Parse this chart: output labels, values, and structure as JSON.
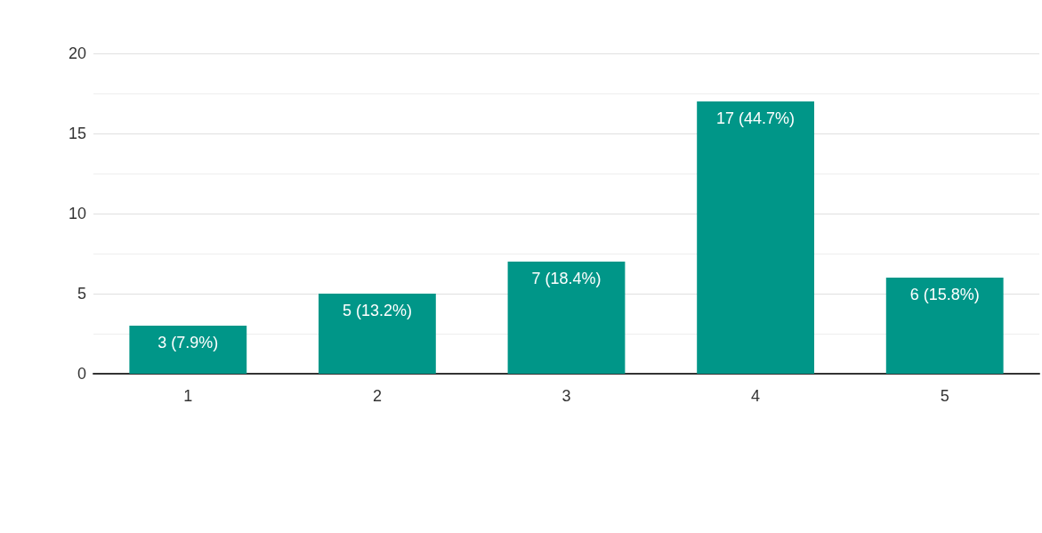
{
  "chart_data": {
    "type": "bar",
    "categories": [
      "1",
      "2",
      "3",
      "4",
      "5"
    ],
    "values": [
      3,
      5,
      7,
      17,
      6
    ],
    "color": "#009688",
    "value_labels": [
      "3 (7.9%)",
      "5 (13.2%)",
      "7 (18.4%)",
      "17 (44.7%)",
      "6 (15.8%)"
    ],
    "ylim": [
      0,
      20
    ],
    "yticks": [
      0,
      5,
      10,
      15,
      20
    ],
    "grid": "y"
  }
}
